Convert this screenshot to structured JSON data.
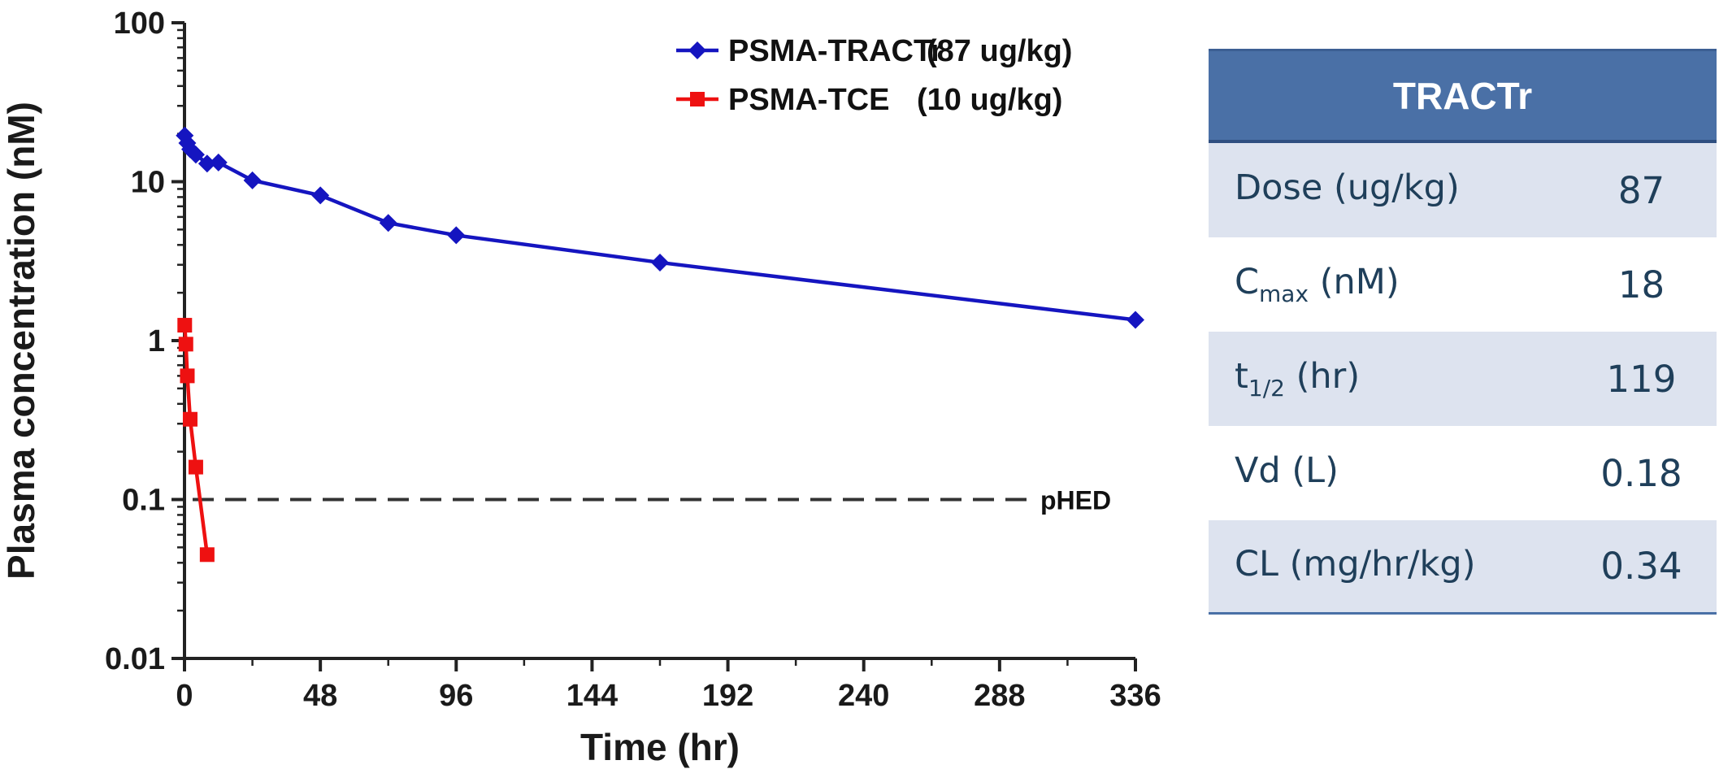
{
  "chart_data": {
    "type": "line",
    "yscale": "log",
    "xlabel": "Time (hr)",
    "ylabel": "Plasma concentration (nM)",
    "xlim": [
      0,
      336
    ],
    "ylim": [
      0.01,
      100
    ],
    "x_ticks": [
      0,
      48,
      96,
      144,
      192,
      240,
      288,
      336
    ],
    "x_tick_labels": [
      "0",
      "48",
      "96",
      "144",
      "192",
      "240",
      "288",
      "336"
    ],
    "y_ticks": [
      0.01,
      0.1,
      1,
      10,
      100
    ],
    "y_tick_labels": [
      "0.01",
      "0.1",
      "1",
      "10",
      "100"
    ],
    "series": [
      {
        "name": "PSMA-TRACTr",
        "dose_label": "(87 ug/kg)",
        "color": "#1515c0",
        "marker": "diamond",
        "x": [
          0.083,
          1,
          2,
          4,
          8,
          12,
          24,
          48,
          72,
          96,
          168,
          336
        ],
        "values": [
          19.5,
          17.5,
          16,
          14.8,
          13,
          13.2,
          10.2,
          8.2,
          5.5,
          4.6,
          3.1,
          1.35
        ]
      },
      {
        "name": "PSMA-TCE",
        "dose_label": "(10 ug/kg)",
        "color": "#ee1111",
        "marker": "square",
        "x": [
          0.083,
          0.5,
          1,
          2,
          4,
          8
        ],
        "values": [
          1.25,
          0.95,
          0.6,
          0.32,
          0.16,
          0.045
        ]
      }
    ],
    "reference_line": {
      "label": "pHED",
      "value": 0.1,
      "style": "dashed",
      "color": "#333333"
    },
    "legend_position": "top-right"
  },
  "table": {
    "title": "TRACTr",
    "rows": [
      {
        "label": "Dose (ug/kg)",
        "label_main": "Dose (ug/kg)",
        "label_sub": "",
        "label_rest": "",
        "value": "87"
      },
      {
        "label": "Cmax (nM)",
        "label_main": "C",
        "label_sub": "max",
        "label_rest": " (nM)",
        "value": "18"
      },
      {
        "label": "t1/2 (hr)",
        "label_main": "t",
        "label_sub": "1/2",
        "label_rest": " (hr)",
        "value": "119"
      },
      {
        "label": "Vd (L)",
        "label_main": "Vd (L)",
        "label_sub": "",
        "label_rest": "",
        "value": "0.18"
      },
      {
        "label": "CL (mg/hr/kg)",
        "label_main": "CL (mg/hr/kg)",
        "label_sub": "",
        "label_rest": "",
        "value": "0.34"
      }
    ]
  }
}
